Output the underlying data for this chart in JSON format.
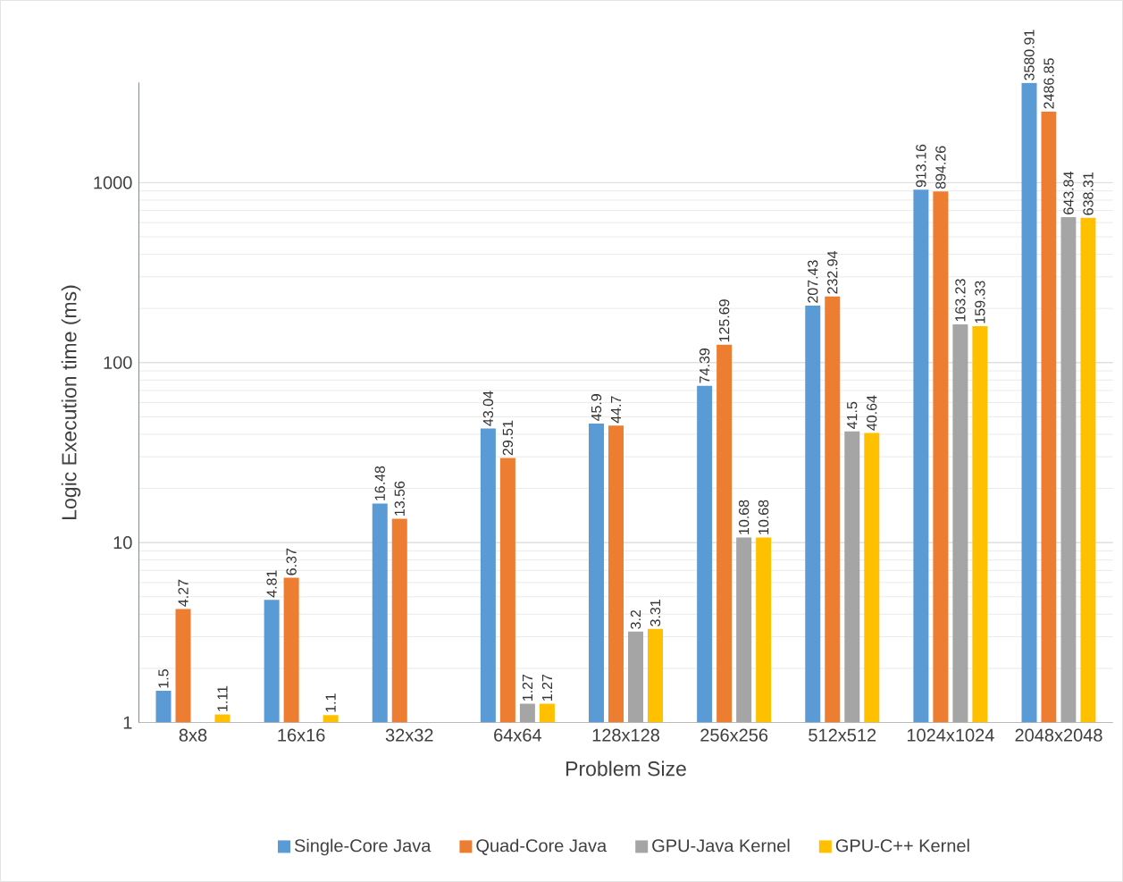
{
  "chart_data": {
    "type": "bar",
    "xlabel": "Problem Size",
    "ylabel": "Logic Execution time (ms)",
    "categories": [
      "8x8",
      "16x16",
      "32x32",
      "64x64",
      "128x128",
      "256x256",
      "512x512",
      "1024x1024",
      "2048x2048"
    ],
    "series": [
      {
        "name": "Single-Core Java",
        "color": "#5b9bd5",
        "values": [
          1.5,
          4.81,
          16.48,
          43.04,
          45.9,
          74.39,
          207.43,
          913.16,
          3580.91
        ]
      },
      {
        "name": "Quad-Core Java",
        "color": "#ed7d31",
        "values": [
          4.27,
          6.37,
          13.56,
          29.51,
          44.7,
          125.69,
          232.94,
          894.26,
          2486.85
        ]
      },
      {
        "name": "GPU-Java Kernel",
        "color": "#a5a5a5",
        "values": [
          null,
          null,
          null,
          1.27,
          3.2,
          10.68,
          41.5,
          163.23,
          643.84
        ]
      },
      {
        "name": "GPU-C++ Kernel",
        "color": "#ffc000",
        "values": [
          1.11,
          1.1,
          null,
          1.27,
          3.31,
          10.68,
          40.64,
          159.33,
          638.31
        ]
      }
    ],
    "log": "y",
    "ylim": [
      1,
      3600
    ],
    "yticks": [
      1,
      10,
      100,
      1000
    ],
    "grid": "y",
    "legend": "bottom",
    "data_labels": true
  }
}
